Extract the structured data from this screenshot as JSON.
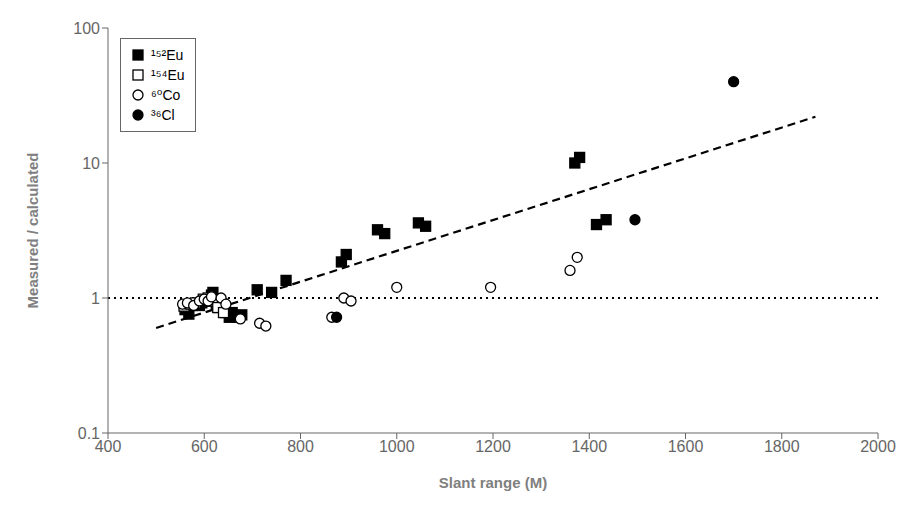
{
  "chart_data": {
    "type": "scatter",
    "xlabel": "Slant range (M)",
    "ylabel": "Measured / calculated",
    "xlim": [
      400,
      2000
    ],
    "xticks": [
      400,
      600,
      800,
      1000,
      1200,
      1400,
      1600,
      1800,
      2000
    ],
    "ylim": [
      0.1,
      100
    ],
    "yticks": [
      0.1,
      1,
      10,
      100
    ],
    "log": "y",
    "grid": false,
    "legend": "upper left",
    "series": [
      {
        "type": "line",
        "line_style": "dashed",
        "color": "black",
        "x": [
          500,
          1870
        ],
        "values": [
          0.6,
          22.0
        ]
      },
      {
        "type": "hline",
        "line_style": "dotted",
        "color": "black",
        "values": [
          1.0
        ]
      },
      {
        "name": "¹⁵²Eu",
        "type": "scatter",
        "marker": "square",
        "color": "black",
        "x": [
          560,
          568,
          575,
          590,
          595,
          608,
          615,
          618,
          625,
          630,
          638,
          645,
          652,
          658,
          668,
          678,
          710,
          740,
          770,
          885,
          895,
          960,
          975,
          1045,
          1060,
          1370,
          1380,
          1415,
          1435
        ],
        "values": [
          0.82,
          0.76,
          0.88,
          0.88,
          0.92,
          0.95,
          1.05,
          1.1,
          0.9,
          0.85,
          0.9,
          0.78,
          0.72,
          0.78,
          0.72,
          0.75,
          1.15,
          1.1,
          1.35,
          1.85,
          2.1,
          3.2,
          3.0,
          3.6,
          3.4,
          10.0,
          11.0,
          3.5,
          3.8
        ]
      },
      {
        "name": "¹⁵⁴Eu",
        "type": "scatter",
        "marker": "open_square",
        "color": "black",
        "x": [
          558,
          572,
          582,
          598,
          608,
          618,
          628,
          640
        ],
        "values": [
          0.87,
          0.9,
          0.92,
          0.98,
          1.0,
          0.95,
          0.85,
          0.78
        ]
      },
      {
        "name": "⁶⁰Co",
        "type": "scatter",
        "marker": "open_circle",
        "color": "black",
        "x": [
          555,
          565,
          578,
          590,
          600,
          608,
          615,
          635,
          645,
          675,
          715,
          728,
          865,
          890,
          905,
          1000,
          1195,
          1360,
          1375
        ],
        "values": [
          0.9,
          0.92,
          0.88,
          0.95,
          0.98,
          0.95,
          1.02,
          1.0,
          0.9,
          0.7,
          0.65,
          0.62,
          0.72,
          1.0,
          0.95,
          1.2,
          1.2,
          1.6,
          2.0
        ]
      },
      {
        "name": "³⁶Cl",
        "type": "scatter",
        "marker": "circle",
        "color": "black",
        "x": [
          875,
          1495,
          1700
        ],
        "values": [
          0.72,
          3.8,
          40.0
        ]
      }
    ]
  }
}
